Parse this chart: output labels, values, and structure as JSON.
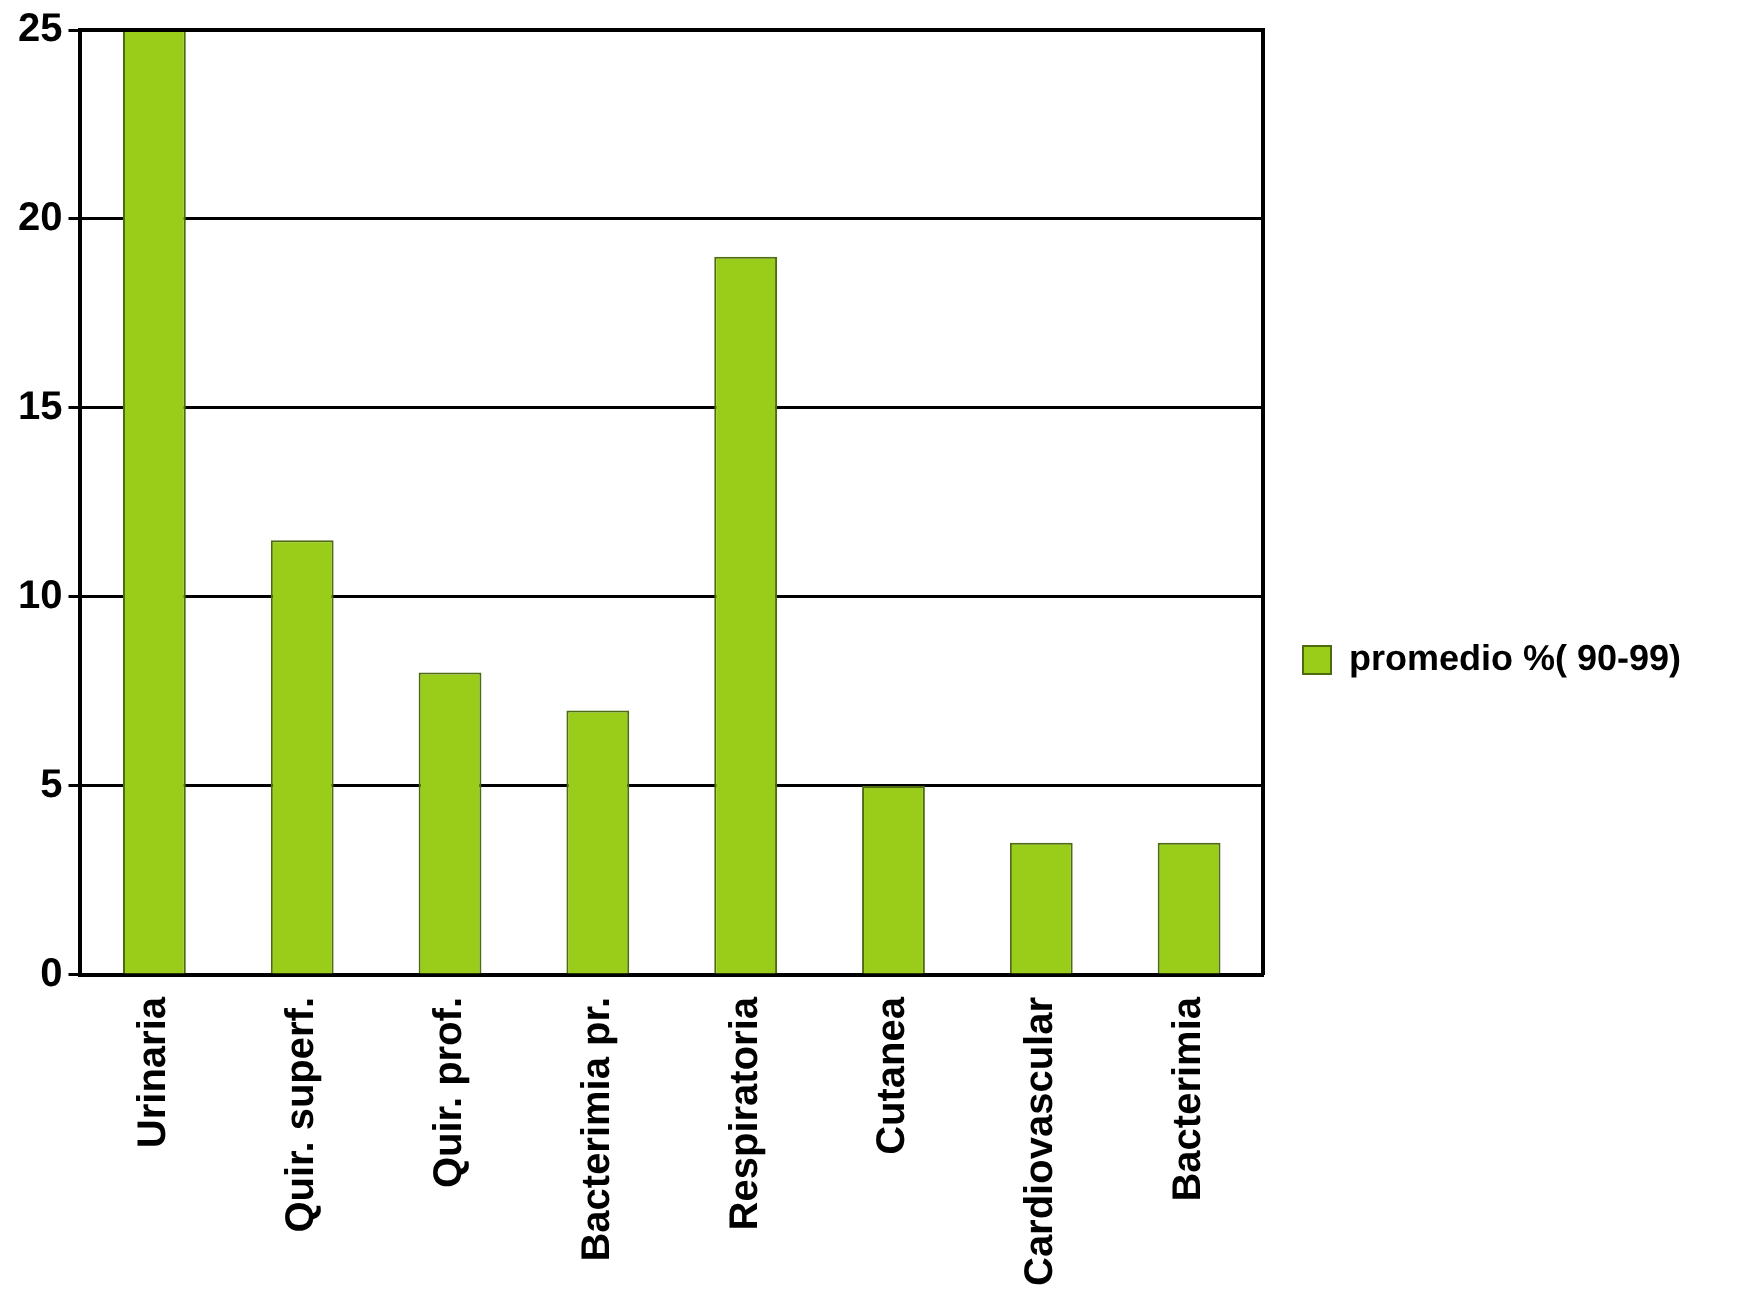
{
  "chart_data": {
    "type": "bar",
    "categories": [
      "Urinaria",
      "Quir. superf.",
      "Quir. prof.",
      "Bacterimia pr.",
      "Respiratoria",
      "Cutanea",
      "Cardiovascular",
      "Bacterimia"
    ],
    "series": [
      {
        "name": "promedio %( 90-99)",
        "color": "#9acd1a",
        "values": [
          25,
          11.5,
          8,
          7,
          19,
          5,
          3.5,
          3.5
        ]
      }
    ],
    "ylim": [
      0,
      25
    ],
    "yticks": [
      0,
      5,
      10,
      15,
      20,
      25
    ],
    "grid": "y",
    "legend": "right"
  }
}
